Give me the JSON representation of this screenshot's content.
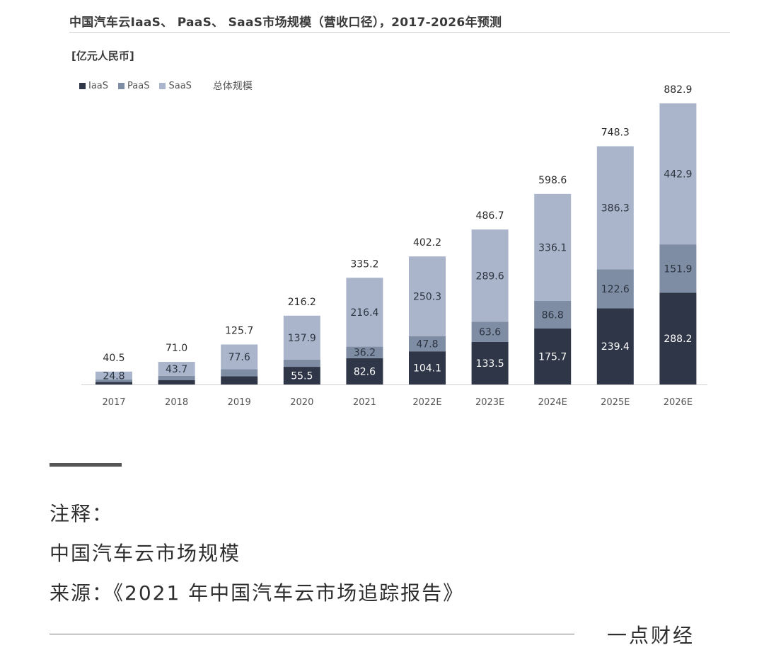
{
  "chart_data": {
    "type": "bar",
    "stacked": true,
    "title": "中国汽车云IaaS、 PaaS、 SaaS市场规模（营收口径），2017-2026年预测",
    "unit": "[亿元人民币]",
    "categories": [
      "2017",
      "2018",
      "2019",
      "2020",
      "2021",
      "2022E",
      "2023E",
      "2024E",
      "2025E",
      "2026E"
    ],
    "series": [
      {
        "name": "IaaS",
        "color": "#2e3648",
        "values": [
          8.0,
          14.0,
          26.0,
          55.5,
          82.6,
          104.1,
          133.5,
          175.7,
          239.4,
          288.2
        ],
        "labels": [
          "",
          "",
          "",
          "55.5",
          "82.6",
          "104.1",
          "133.5",
          "175.7",
          "239.4",
          "288.2"
        ]
      },
      {
        "name": "PaaS",
        "color": "#7e8ca4",
        "values": [
          7.7,
          13.3,
          22.1,
          22.8,
          36.2,
          47.8,
          63.6,
          86.8,
          122.6,
          151.9
        ],
        "labels": [
          "",
          "",
          "",
          "",
          "36.2",
          "47.8",
          "63.6",
          "86.8",
          "122.6",
          "151.9"
        ]
      },
      {
        "name": "SaaS",
        "color": "#aab5cb",
        "values": [
          24.8,
          43.7,
          77.6,
          137.9,
          216.4,
          250.3,
          289.6,
          336.1,
          386.3,
          442.9
        ],
        "labels": [
          "24.8",
          "43.7",
          "77.6",
          "137.9",
          "216.4",
          "250.3",
          "289.6",
          "336.1",
          "386.3",
          "442.9"
        ]
      }
    ],
    "totals_label": "总体规模",
    "totals": [
      "40.5",
      "71.0",
      "125.7",
      "216.2",
      "335.2",
      "402.2",
      "486.7",
      "598.6",
      "748.3",
      "882.9"
    ],
    "ylim": [
      0,
      900
    ],
    "grid": false,
    "legend": "top-left"
  },
  "footer": {
    "note_title": "注释：",
    "note_line1": "中国汽车云市场规模",
    "note_line2": "来源：《2021 年中国汽车云市场追踪报告》",
    "brand": "一点财经"
  }
}
